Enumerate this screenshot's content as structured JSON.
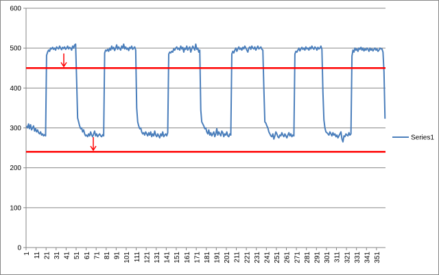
{
  "chart_data": {
    "type": "line",
    "legend": "right",
    "grid": true,
    "ylim": [
      0,
      600
    ],
    "yticks": [
      0,
      100,
      200,
      300,
      400,
      500,
      600
    ],
    "reference_lines": [
      {
        "value": 450,
        "color": "#ff0000"
      },
      {
        "value": 240,
        "color": "#ff0000"
      }
    ],
    "categories": [
      1,
      null,
      null,
      null,
      null,
      null,
      null,
      null,
      null,
      null,
      11,
      null,
      null,
      null,
      null,
      null,
      null,
      null,
      null,
      null,
      21,
      null,
      null,
      null,
      null,
      null,
      null,
      null,
      null,
      null,
      31,
      null,
      null,
      null,
      null,
      null,
      null,
      null,
      null,
      null,
      41,
      null,
      null,
      null,
      null,
      null,
      null,
      null,
      null,
      null,
      51,
      null,
      null,
      null,
      null,
      null,
      null,
      null,
      null,
      null,
      61,
      null,
      null,
      null,
      null,
      null,
      null,
      null,
      null,
      null,
      71,
      null,
      null,
      null,
      null,
      null,
      null,
      null,
      null,
      null,
      81,
      null,
      null,
      null,
      null,
      null,
      null,
      null,
      null,
      null,
      91,
      null,
      null,
      null,
      null,
      null,
      null,
      null,
      null,
      null,
      101,
      null,
      null,
      null,
      null,
      null,
      null,
      null,
      null,
      null,
      111,
      null,
      null,
      null,
      null,
      null,
      null,
      null,
      null,
      null,
      121,
      null,
      null,
      null,
      null,
      null,
      null,
      null,
      null,
      null,
      131,
      null,
      null,
      null,
      null,
      null,
      null,
      null,
      null,
      null,
      141,
      null,
      null,
      null,
      null,
      null,
      null,
      null,
      null,
      null,
      151,
      null,
      null,
      null,
      null,
      null,
      null,
      null,
      null,
      null,
      161,
      null,
      null,
      null,
      null,
      null,
      null,
      null,
      null,
      null,
      171,
      null,
      null,
      null,
      null,
      null,
      null,
      null,
      null,
      null,
      181,
      null,
      null,
      null,
      null,
      null,
      null,
      null,
      null,
      null,
      191,
      null,
      null,
      null,
      null,
      null,
      null,
      null,
      null,
      null,
      201,
      null,
      null,
      null,
      null,
      null,
      null,
      null,
      null,
      null,
      211,
      null,
      null,
      null,
      null,
      null,
      null,
      null,
      null,
      null,
      221,
      null,
      null,
      null,
      null,
      null,
      null,
      null,
      null,
      null,
      231,
      null,
      null,
      null,
      null,
      null,
      null,
      null,
      null,
      null,
      241,
      null,
      null,
      null,
      null,
      null,
      null,
      null,
      null,
      null,
      251,
      null,
      null,
      null,
      null,
      null,
      null,
      null,
      null,
      null,
      261,
      null,
      null,
      null,
      null,
      null,
      null,
      null,
      null,
      null,
      271,
      null,
      null,
      null,
      null,
      null,
      null,
      null,
      null,
      null,
      281,
      null,
      null,
      null,
      null,
      null,
      null,
      null,
      null,
      null,
      291,
      null,
      null,
      null,
      null,
      null,
      null,
      null,
      null,
      null,
      301,
      null,
      null,
      null,
      null,
      null,
      null,
      null,
      null,
      null,
      311,
      null,
      null,
      null,
      null,
      null,
      null,
      null,
      null,
      null,
      321,
      null,
      null,
      null,
      null,
      null,
      null,
      null,
      null,
      null,
      331,
      null,
      null,
      null,
      null,
      null,
      null,
      null,
      null,
      null,
      341,
      null,
      null,
      null,
      null,
      null,
      null,
      null,
      null,
      null,
      351,
      null,
      null,
      null,
      null,
      null,
      null,
      null,
      null
    ],
    "series": [
      {
        "name": "Series1",
        "color": "#4a7ebb",
        "values": [
          305,
          300,
          310,
          298,
          308,
          295,
          300,
          305,
          292,
          298,
          290,
          295,
          288,
          285,
          290,
          282,
          285,
          280,
          283,
          280,
          482,
          490,
          495,
          492,
          500,
          498,
          502,
          497,
          500,
          495,
          503,
          500,
          498,
          505,
          500,
          496,
          502,
          499,
          503,
          497,
          500,
          505,
          498,
          502,
          500,
          495,
          505,
          500,
          508,
          510,
          420,
          325,
          315,
          305,
          298,
          300,
          290,
          295,
          285,
          280,
          282,
          278,
          285,
          280,
          290,
          282,
          278,
          285,
          292,
          280,
          285,
          278,
          282,
          285,
          280,
          278,
          283,
          280,
          488,
          495,
          493,
          497,
          492,
          500,
          495,
          505,
          498,
          502,
          494,
          500,
          508,
          497,
          503,
          499,
          495,
          505,
          500,
          510,
          498,
          503,
          497,
          500,
          494,
          502,
          499,
          505,
          497,
          500,
          503,
          495,
          350,
          315,
          305,
          298,
          300,
          290,
          285,
          288,
          282,
          290,
          285,
          280,
          288,
          282,
          290,
          278,
          285,
          280,
          292,
          282,
          278,
          285,
          280,
          275,
          285,
          280,
          290,
          278,
          282,
          285,
          280,
          288,
          485,
          490,
          488,
          492,
          490,
          498,
          495,
          500,
          503,
          497,
          500,
          495,
          505,
          498,
          502,
          490,
          500,
          497,
          505,
          495,
          500,
          503,
          490,
          498,
          505,
          500,
          495,
          510,
          497,
          500,
          490,
          495,
          345,
          315,
          310,
          305,
          298,
          300,
          290,
          285,
          295,
          282,
          288,
          280,
          285,
          290,
          278,
          285,
          298,
          282,
          290,
          285,
          280,
          292,
          288,
          278,
          285,
          282,
          290,
          280,
          278,
          285,
          282,
          485,
          492,
          488,
          495,
          500,
          492,
          498,
          503,
          497,
          500,
          495,
          502,
          498,
          505,
          500,
          495,
          490,
          500,
          503,
          497,
          505,
          500,
          498,
          503,
          495,
          500,
          505,
          498,
          500,
          503,
          497,
          495,
          400,
          315,
          312,
          305,
          300,
          290,
          285,
          280,
          278,
          285,
          272,
          280,
          290,
          285,
          278,
          275,
          282,
          280,
          288,
          282,
          278,
          285,
          280,
          275,
          282,
          288,
          280,
          285,
          278,
          282,
          280,
          485,
          492,
          490,
          495,
          500,
          493,
          498,
          502,
          497,
          500,
          495,
          503,
          498,
          500,
          495,
          502,
          498,
          505,
          500,
          497,
          503,
          500,
          495,
          502,
          498,
          500,
          505,
          497,
          390,
          320,
          300,
          290,
          288,
          285,
          282,
          290,
          285,
          280,
          288,
          282,
          285,
          278,
          282,
          275,
          280,
          285,
          290,
          272,
          265,
          280,
          278,
          285,
          282,
          280,
          288,
          282,
          285,
          480,
          495,
          490,
          500,
          495,
          498,
          492,
          500,
          497,
          502,
          495,
          500,
          493,
          498,
          495,
          500,
          497,
          492,
          500,
          495,
          498,
          493,
          497,
          500,
          495,
          498,
          492,
          495,
          500,
          498,
          498,
          490,
          440,
          323
        ]
      }
    ]
  }
}
